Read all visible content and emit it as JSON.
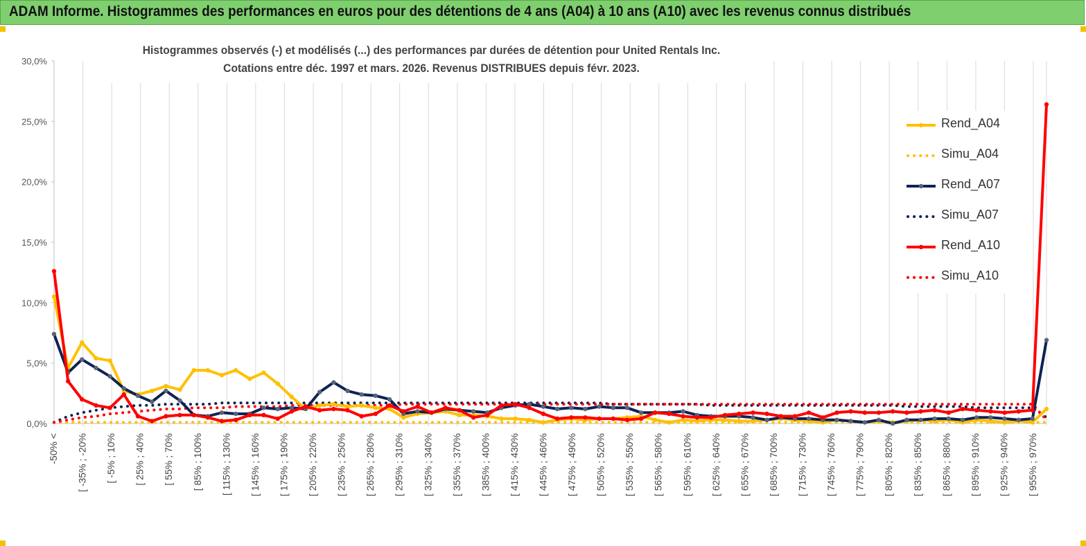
{
  "header": {
    "title": "ADAM Informe. Histogrammes des performances en euros pour des détentions de 4 ans (A04) à 10 ans (A10) avec les revenus connus distribués"
  },
  "chart_data": {
    "type": "line",
    "title_line1": "Histogrammes observés (-)  et modélisés (...) des performances par durées de détention pour United Rentals Inc.",
    "title_line2": "Cotations entre déc. 1997 et mars. 2026. Revenus DISTRIBUES depuis févr. 2023.",
    "ylim": [
      0,
      30
    ],
    "yticks": [
      "0,0%",
      "5,0%",
      "10,0%",
      "15,0%",
      "20,0%",
      "25,0%",
      "30,0%"
    ],
    "grid": "vertical",
    "legend_position": "right",
    "x_labels": [
      "-50% <",
      "[ -35% ; -20%",
      "[ -5% ; 10%",
      "[ 25% ; 40%",
      "[ 55% ; 70%",
      "[ 85% ; 100%",
      "[ 115% ; 130%",
      "[ 145% ; 160%",
      "[ 175% ; 190%",
      "[ 205% ; 220%",
      "[ 235% ; 250%",
      "[ 265% ; 280%",
      "[ 295% ; 310%",
      "[ 325% ; 340%",
      "[ 355% ; 370%",
      "[ 385% ; 400%",
      "[ 415% ; 430%",
      "[ 445% ; 460%",
      "[ 475% ; 490%",
      "[ 505% ; 520%",
      "[ 535% ; 550%",
      "[ 565% ; 580%",
      "[ 595% ; 610%",
      "[ 625% ; 640%",
      "[ 655% ; 670%",
      "[ 685% ; 700%",
      "[ 715% ; 730%",
      "[ 745% ; 760%",
      "[ 775% ; 790%",
      "[ 805% ; 820%",
      "[ 835% ; 850%",
      "[ 865% ; 880%",
      "[ 895% ; 910%",
      "[ 925% ; 940%",
      "[ 955% ; 970%"
    ],
    "series": [
      {
        "name": "Rend_A04",
        "style": "solid",
        "color": "#ffc000",
        "values": [
          10.5,
          4.6,
          6.7,
          5.4,
          5.2,
          2.7,
          2.4,
          2.7,
          3.1,
          2.8,
          4.4,
          4.4,
          4.0,
          4.4,
          3.7,
          4.2,
          3.3,
          2.2,
          1.2,
          1.5,
          1.6,
          1.4,
          1.5,
          1.3,
          1.2,
          0.5,
          0.8,
          0.9,
          1.0,
          0.7,
          0.7,
          0.6,
          0.4,
          0.4,
          0.3,
          0.1,
          0.3,
          0.4,
          0.3,
          0.4,
          0.4,
          0.5,
          0.6,
          0.3,
          0.1,
          0.3,
          0.2,
          0.3,
          0.3,
          0.2,
          0.2,
          0.3,
          0.4,
          0.3,
          0.2,
          0.1,
          0.3,
          0.2,
          0.1,
          0.2,
          0.1,
          0.2,
          0.3,
          0.2,
          0.3,
          0.1,
          0.3,
          0.2,
          0.1,
          0.2,
          0.1,
          1.2
        ]
      },
      {
        "name": "Simu_A04",
        "style": "dotted",
        "color": "#ffc000",
        "values": [
          0.1,
          0.1,
          0.1,
          0.1,
          0.1,
          0.1,
          0.1,
          0.1,
          0.1,
          0.1,
          0.1,
          0.1,
          0.1,
          0.1,
          0.1,
          0.1,
          0.1,
          0.1,
          0.1,
          0.1,
          0.1,
          0.1,
          0.1,
          0.1,
          0.1,
          0.1,
          0.1,
          0.1,
          0.1,
          0.1,
          0.1,
          0.1,
          0.1,
          0.1,
          0.1,
          0.1,
          0.1,
          0.1,
          0.1,
          0.1,
          0.1,
          0.1,
          0.1,
          0.1,
          0.1,
          0.1,
          0.1,
          0.1,
          0.1,
          0.1,
          0.1,
          0.1,
          0.1,
          0.1,
          0.1,
          0.1,
          0.1,
          0.1,
          0.1,
          0.1,
          0.1,
          0.1,
          0.1,
          0.1,
          0.1,
          0.1,
          0.1,
          0.1,
          0.1,
          0.1,
          0.1,
          0.1
        ]
      },
      {
        "name": "Rend_A07",
        "style": "solid",
        "color": "#0d2356",
        "values": [
          7.4,
          4.2,
          5.3,
          4.6,
          3.9,
          2.9,
          2.3,
          1.8,
          2.7,
          1.9,
          0.7,
          0.6,
          0.9,
          0.8,
          0.8,
          1.3,
          1.2,
          1.3,
          1.2,
          2.6,
          3.4,
          2.7,
          2.4,
          2.3,
          2.0,
          0.8,
          1.0,
          0.9,
          1.2,
          1.1,
          1.0,
          0.9,
          1.3,
          1.5,
          1.6,
          1.4,
          1.2,
          1.3,
          1.2,
          1.4,
          1.3,
          1.3,
          0.9,
          0.9,
          0.9,
          1.0,
          0.7,
          0.6,
          0.6,
          0.6,
          0.5,
          0.3,
          0.5,
          0.4,
          0.4,
          0.3,
          0.3,
          0.2,
          0.1,
          0.3,
          0.0,
          0.3,
          0.3,
          0.4,
          0.4,
          0.3,
          0.5,
          0.5,
          0.4,
          0.3,
          0.4,
          6.9
        ]
      },
      {
        "name": "Simu_A07",
        "style": "dotted",
        "color": "#0d2356",
        "values": [
          0.1,
          0.6,
          0.9,
          1.1,
          1.3,
          1.4,
          1.5,
          1.5,
          1.6,
          1.6,
          1.6,
          1.6,
          1.7,
          1.7,
          1.7,
          1.7,
          1.7,
          1.7,
          1.7,
          1.7,
          1.7,
          1.7,
          1.7,
          1.7,
          1.7,
          1.7,
          1.7,
          1.7,
          1.7,
          1.7,
          1.7,
          1.7,
          1.7,
          1.7,
          1.7,
          1.7,
          1.7,
          1.7,
          1.7,
          1.7,
          1.6,
          1.6,
          1.6,
          1.6,
          1.6,
          1.6,
          1.6,
          1.5,
          1.5,
          1.5,
          1.5,
          1.5,
          1.5,
          1.5,
          1.5,
          1.5,
          1.5,
          1.5,
          1.5,
          1.5,
          1.5,
          1.4,
          1.4,
          1.4,
          1.4,
          1.4,
          1.3,
          1.3,
          1.3,
          1.3,
          1.3,
          0.5
        ]
      },
      {
        "name": "Rend_A10",
        "style": "solid",
        "color": "#ff0000",
        "values": [
          12.6,
          3.5,
          2.0,
          1.5,
          1.3,
          2.4,
          0.6,
          0.2,
          0.6,
          0.7,
          0.7,
          0.5,
          0.2,
          0.3,
          0.7,
          0.7,
          0.4,
          1.0,
          1.4,
          1.1,
          1.2,
          1.1,
          0.6,
          0.8,
          1.5,
          1.0,
          1.4,
          0.9,
          1.3,
          1.1,
          0.5,
          0.7,
          1.5,
          1.6,
          1.3,
          0.8,
          0.4,
          0.5,
          0.5,
          0.4,
          0.4,
          0.3,
          0.4,
          0.9,
          0.8,
          0.6,
          0.5,
          0.5,
          0.7,
          0.8,
          0.9,
          0.8,
          0.6,
          0.6,
          0.9,
          0.5,
          0.9,
          1.0,
          0.9,
          0.9,
          1.0,
          0.9,
          1.0,
          1.1,
          0.9,
          1.2,
          1.1,
          1.0,
          0.9,
          1.0,
          1.1,
          26.4
        ]
      },
      {
        "name": "Simu_A10",
        "style": "dotted",
        "color": "#ff0000",
        "values": [
          0.1,
          0.3,
          0.5,
          0.6,
          0.8,
          0.9,
          1.0,
          1.1,
          1.2,
          1.2,
          1.3,
          1.3,
          1.3,
          1.4,
          1.4,
          1.4,
          1.4,
          1.5,
          1.5,
          1.5,
          1.5,
          1.5,
          1.5,
          1.5,
          1.5,
          1.6,
          1.6,
          1.6,
          1.6,
          1.6,
          1.6,
          1.6,
          1.6,
          1.6,
          1.6,
          1.6,
          1.6,
          1.6,
          1.6,
          1.6,
          1.6,
          1.6,
          1.6,
          1.6,
          1.6,
          1.6,
          1.6,
          1.6,
          1.6,
          1.6,
          1.6,
          1.6,
          1.6,
          1.6,
          1.6,
          1.6,
          1.6,
          1.6,
          1.6,
          1.6,
          1.6,
          1.6,
          1.6,
          1.6,
          1.6,
          1.6,
          1.6,
          1.6,
          1.6,
          1.6,
          1.6,
          0.3
        ]
      }
    ]
  }
}
